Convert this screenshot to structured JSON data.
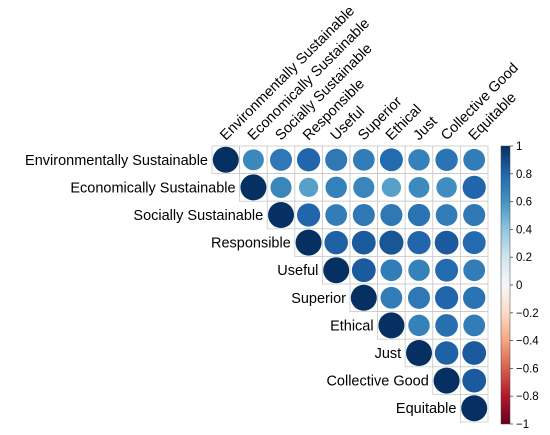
{
  "chart_data": {
    "type": "heatmap",
    "variables": [
      "Environmentally Sustainable",
      "Economically Sustainable",
      "Socially Sustainable",
      "Responsible",
      "Useful",
      "Superior",
      "Ethical",
      "Just",
      "Collective Good",
      "Equitable"
    ],
    "matrix_upper": [
      [
        1.0,
        0.65,
        0.72,
        0.8,
        0.72,
        0.7,
        0.78,
        0.68,
        0.74,
        0.7
      ],
      [
        null,
        1.0,
        0.66,
        0.55,
        0.68,
        0.66,
        0.55,
        0.64,
        0.62,
        0.8
      ],
      [
        null,
        null,
        1.0,
        0.8,
        0.7,
        0.72,
        0.72,
        0.74,
        0.7,
        0.72
      ],
      [
        null,
        null,
        null,
        1.0,
        0.82,
        0.84,
        0.86,
        0.8,
        0.84,
        0.78
      ],
      [
        null,
        null,
        null,
        null,
        1.0,
        0.84,
        0.7,
        0.68,
        0.78,
        0.7
      ],
      [
        null,
        null,
        null,
        null,
        null,
        1.0,
        0.7,
        0.72,
        0.8,
        0.74
      ],
      [
        null,
        null,
        null,
        null,
        null,
        null,
        1.0,
        0.68,
        0.76,
        0.7
      ],
      [
        null,
        null,
        null,
        null,
        null,
        null,
        null,
        1.0,
        0.82,
        0.84
      ],
      [
        null,
        null,
        null,
        null,
        null,
        null,
        null,
        null,
        1.0,
        0.84
      ],
      [
        null,
        null,
        null,
        null,
        null,
        null,
        null,
        null,
        null,
        1.0
      ]
    ],
    "colorbar": {
      "ticks": [
        "1",
        "0.8",
        "0.6",
        "0.4",
        "0.2",
        "0",
        "−0.2",
        "−0.4",
        "−0.6",
        "−0.8",
        "−1"
      ],
      "range": [
        -1,
        1
      ]
    },
    "colors": {
      "negative_end": "#67001f",
      "mid": "#f7f7f7",
      "positive_end": "#053061"
    },
    "grid": true
  }
}
